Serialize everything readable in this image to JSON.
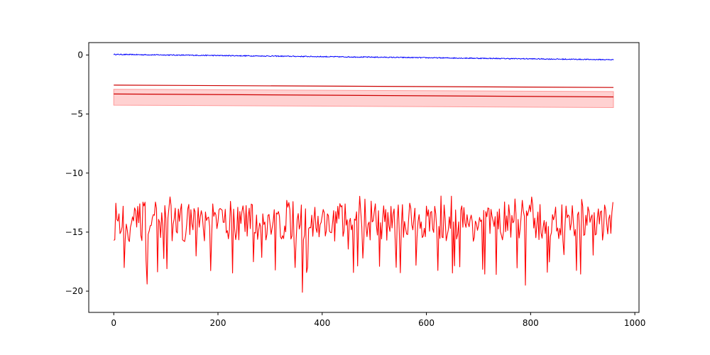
{
  "chart_data": {
    "type": "line",
    "title": "",
    "xlabel": "",
    "ylabel": "",
    "xlim": [
      -48,
      1008
    ],
    "ylim": [
      -21.8,
      1.05
    ],
    "x_ticks": [
      0,
      200,
      400,
      600,
      800,
      1000
    ],
    "x_tick_labels": [
      "0",
      "200",
      "400",
      "600",
      "800",
      "1000"
    ],
    "y_ticks": [
      0,
      -5,
      -10,
      -15,
      -20
    ],
    "y_tick_labels": [
      "0",
      "−5",
      "−10",
      "−15",
      "−20"
    ],
    "grid": false,
    "legend": "none",
    "series": [
      {
        "color": "#0000ff",
        "description": "slowly declining line from about 0.0 to -0.4 with small noise",
        "x_start": 0,
        "x_end": 959,
        "y_start": 0.05,
        "y_end": -0.4,
        "noise_amplitude": 0.04
      },
      {
        "color": "#cc0000",
        "description": "upper straight line",
        "x": [
          0,
          959
        ],
        "y": [
          -2.55,
          -2.75
        ]
      },
      {
        "color": "#cc0000",
        "description": "middle straight line with shaded band",
        "x": [
          0,
          959
        ],
        "y": [
          -3.3,
          -3.55
        ],
        "band_upper": [
          -2.9,
          -3.1
        ],
        "band_lower": [
          -4.25,
          -4.45
        ],
        "band_color": "#ff9999"
      },
      {
        "color": "#ff0000",
        "description": "noisy series fluctuating around -14.2 with negative spikes",
        "x_start": 0,
        "x_end": 959,
        "baseline": -14.2,
        "max_value": -11.9,
        "min_value": -20.8,
        "spikes": [
          {
            "x": 64,
            "y": -19.4
          },
          {
            "x": 102,
            "y": -18.1
          },
          {
            "x": 155,
            "y": -19.6
          },
          {
            "x": 195,
            "y": -19.2
          },
          {
            "x": 209,
            "y": -20.8
          },
          {
            "x": 287,
            "y": -20.5
          },
          {
            "x": 362,
            "y": -20.1
          },
          {
            "x": 395,
            "y": -18.2
          },
          {
            "x": 790,
            "y": -19.5
          },
          {
            "x": 832,
            "y": -18.4
          }
        ]
      }
    ]
  }
}
